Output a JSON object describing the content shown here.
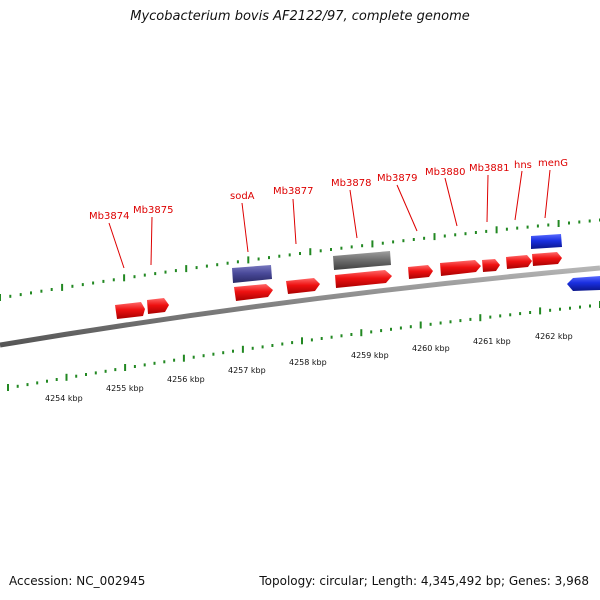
{
  "title": "Mycobacterium bovis AF2122/97, complete genome",
  "accession": "Accession: NC_002945",
  "topology": "Topology: circular; Length: 4,345,492 bp; Genes: 3,968",
  "colors": {
    "backbone": "#8a8a8a",
    "ticks": "#228822",
    "label": "#dd0000",
    "gene_red": "#ee1111",
    "gene_blue": "#1a2fe0",
    "gene_purple": "#4a4a9a",
    "gene_gray": "#707070"
  },
  "gene_labels": [
    "Mb3874",
    "Mb3875",
    "sodA",
    "Mb3877",
    "Mb3878",
    "Mb3879",
    "Mb3880",
    "Mb3881",
    "hns",
    "menG"
  ],
  "kbp_labels": [
    "4254 kbp",
    "4255 kbp",
    "4256 kbp",
    "4257 kbp",
    "4258 kbp",
    "4259 kbp",
    "4260 kbp",
    "4261 kbp",
    "4262 kbp"
  ]
}
